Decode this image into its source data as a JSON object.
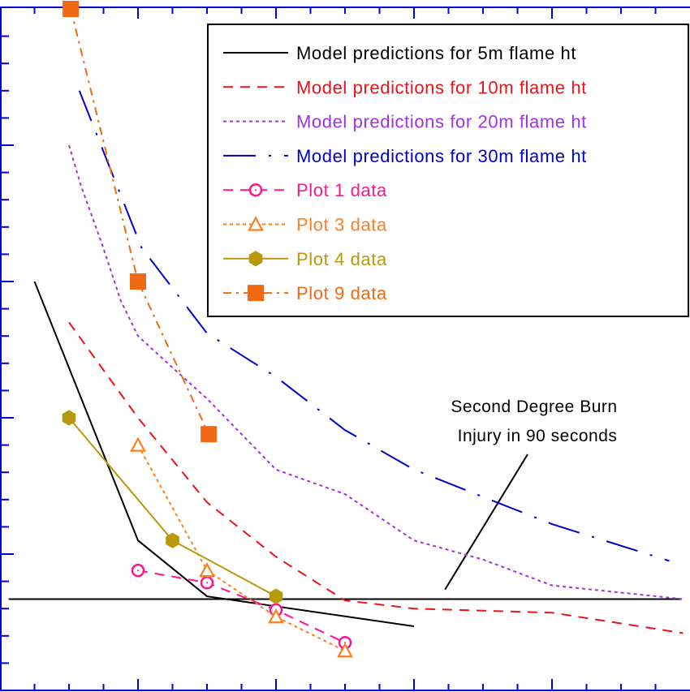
{
  "chart_data": {
    "type": "line",
    "title": "",
    "xlabel": "",
    "ylabel": "",
    "xlim": [
      0,
      20
    ],
    "ylim": [
      0,
      25
    ],
    "grid": false,
    "legend_placement": "top-right",
    "axis_color": "#0000dd",
    "series": [
      {
        "name": "Model predictions for 5m flame ht",
        "color": "#000000",
        "dash": "solid",
        "marker": "none",
        "x": [
          1,
          4,
          6,
          12
        ],
        "y": [
          15.0,
          5.5,
          3.45,
          2.35
        ]
      },
      {
        "name": "Model predictions for 10m flame ht",
        "color": "#e8141a",
        "dash": "dashed",
        "marker": "none",
        "x": [
          2,
          4,
          6,
          8,
          10,
          12,
          16,
          19.8
        ],
        "y": [
          13.5,
          10.0,
          6.9,
          4.9,
          3.3,
          3.0,
          2.85,
          2.1
        ]
      },
      {
        "name": "Model predictions for 20m flame ht",
        "color": "#a033e0",
        "dash": "dotted",
        "marker": "none",
        "x": [
          2,
          2.35,
          2.95,
          3.5,
          4,
          4.95,
          6,
          8,
          10,
          12,
          14,
          16,
          19.8
        ],
        "y": [
          20.0,
          18.5,
          16.4,
          14.3,
          13.0,
          11.9,
          10.7,
          8.1,
          7.2,
          5.5,
          4.8,
          3.85,
          3.35
        ]
      },
      {
        "name": "Model predictions for 30m flame ht",
        "color": "#0000cc",
        "dash": "longdash",
        "marker": "none",
        "x": [
          2.3,
          4.1,
          6,
          8,
          10,
          12,
          14,
          16,
          19.4
        ],
        "y": [
          22.0,
          16.25,
          13.1,
          11.5,
          9.55,
          8.1,
          7.1,
          6.1,
          4.75
        ]
      },
      {
        "name": "Plot 1 data",
        "color": "#ff148c",
        "dash": "dashed",
        "marker": "circle",
        "x": [
          4,
          6,
          8,
          10
        ],
        "y": [
          4.4,
          3.95,
          2.95,
          1.75
        ]
      },
      {
        "name": "Plot 3 data",
        "color": "#ff7f1e",
        "dash": "dotted",
        "marker": "triangle",
        "x": [
          4,
          6,
          8,
          10
        ],
        "y": [
          9.0,
          4.4,
          2.7,
          1.45
        ]
      },
      {
        "name": "Plot 4 data",
        "color": "#b8980c",
        "dash": "solid",
        "marker": "hexagon",
        "x": [
          2,
          5,
          8
        ],
        "y": [
          10.0,
          5.5,
          3.45
        ]
      },
      {
        "name": "Plot 9 data",
        "color": "#f06a14",
        "dash": "dashdot",
        "marker": "square",
        "x": [
          2.05,
          4,
          6.05
        ],
        "y": [
          25.0,
          15.0,
          9.4
        ]
      }
    ],
    "reference_line": {
      "y": 3.35,
      "x": [
        0.25,
        19.75
      ],
      "color": "#000000"
    },
    "annotation": {
      "lines": [
        "Second Degree Burn",
        "Injury in 90 seconds"
      ],
      "pointer_to": {
        "x": 12.9,
        "y": 3.7
      }
    }
  }
}
